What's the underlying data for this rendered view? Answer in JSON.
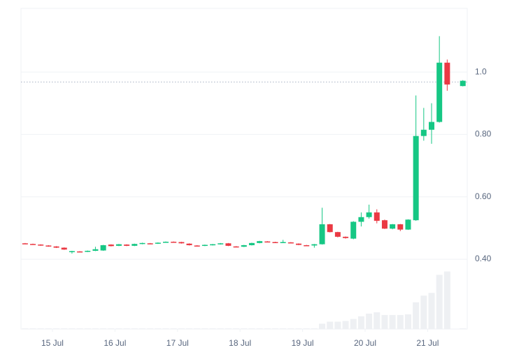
{
  "chart_data": {
    "type": "candlestick",
    "x": [
      -0.4375,
      -0.3125,
      -0.1875,
      -0.0625,
      0.0625,
      0.1875,
      0.3125,
      0.4375,
      0.5625,
      0.6875,
      0.8125,
      0.9375,
      1.0625,
      1.1875,
      1.3125,
      1.4375,
      1.5625,
      1.6875,
      1.8125,
      1.9375,
      2.0625,
      2.1875,
      2.3125,
      2.4375,
      2.5625,
      2.6875,
      2.8125,
      2.9375,
      3.0625,
      3.1875,
      3.3125,
      3.4375,
      3.5625,
      3.6875,
      3.8125,
      3.9375,
      4.0625,
      4.1875,
      4.3125,
      4.4375,
      4.5625,
      4.6875,
      4.8125,
      4.9375,
      5.0625,
      5.1875,
      5.3125,
      5.4375,
      5.5625,
      5.6875,
      5.8125,
      5.9375,
      6.0625,
      6.1875,
      6.3125,
      6.5625
    ],
    "open": [
      0.451,
      0.449,
      0.447,
      0.444,
      0.441,
      0.437,
      0.424,
      0.425,
      0.424,
      0.427,
      0.428,
      0.447,
      0.443,
      0.447,
      0.443,
      0.449,
      0.451,
      0.45,
      0.454,
      0.456,
      0.455,
      0.45,
      0.444,
      0.443,
      0.445,
      0.448,
      0.451,
      0.441,
      0.44,
      0.445,
      0.452,
      0.457,
      0.455,
      0.453,
      0.454,
      0.45,
      0.445,
      0.444,
      0.448,
      0.512,
      0.487,
      0.472,
      0.466,
      0.52,
      0.535,
      0.55,
      0.525,
      0.498,
      0.512,
      0.495,
      0.525,
      0.795,
      0.815,
      0.84,
      1.03,
      0.955
    ],
    "high": [
      0.452,
      0.45,
      0.448,
      0.445,
      0.442,
      0.438,
      0.427,
      0.426,
      0.428,
      0.44,
      0.446,
      0.448,
      0.449,
      0.448,
      0.45,
      0.453,
      0.452,
      0.454,
      0.457,
      0.457,
      0.456,
      0.451,
      0.445,
      0.447,
      0.449,
      0.452,
      0.452,
      0.442,
      0.446,
      0.453,
      0.459,
      0.458,
      0.456,
      0.462,
      0.455,
      0.451,
      0.446,
      0.449,
      0.565,
      0.513,
      0.488,
      0.473,
      0.522,
      0.55,
      0.575,
      0.56,
      0.527,
      0.513,
      0.513,
      0.528,
      0.925,
      0.885,
      0.9,
      1.115,
      1.04,
      0.974
    ],
    "low": [
      0.449,
      0.446,
      0.443,
      0.44,
      0.436,
      0.43,
      0.418,
      0.422,
      0.423,
      0.426,
      0.427,
      0.441,
      0.442,
      0.442,
      0.442,
      0.448,
      0.449,
      0.449,
      0.453,
      0.454,
      0.45,
      0.444,
      0.441,
      0.442,
      0.444,
      0.447,
      0.442,
      0.438,
      0.439,
      0.444,
      0.451,
      0.455,
      0.452,
      0.452,
      0.451,
      0.445,
      0.443,
      0.437,
      0.447,
      0.486,
      0.47,
      0.466,
      0.464,
      0.505,
      0.53,
      0.515,
      0.497,
      0.496,
      0.49,
      0.494,
      0.523,
      0.78,
      0.77,
      0.838,
      0.94,
      0.954
    ],
    "close": [
      0.45,
      0.447,
      0.444,
      0.441,
      0.437,
      0.431,
      0.426,
      0.423,
      0.427,
      0.432,
      0.445,
      0.442,
      0.448,
      0.443,
      0.449,
      0.452,
      0.45,
      0.453,
      0.456,
      0.455,
      0.451,
      0.445,
      0.442,
      0.446,
      0.448,
      0.451,
      0.443,
      0.44,
      0.445,
      0.452,
      0.458,
      0.456,
      0.453,
      0.455,
      0.452,
      0.446,
      0.444,
      0.448,
      0.512,
      0.487,
      0.472,
      0.468,
      0.52,
      0.535,
      0.55,
      0.523,
      0.498,
      0.512,
      0.495,
      0.527,
      0.795,
      0.815,
      0.84,
      1.03,
      0.96,
      0.972
    ],
    "volume": [
      1,
      1,
      1,
      1,
      1,
      1,
      1,
      1,
      1,
      1,
      1,
      1,
      1,
      1,
      1,
      1,
      1,
      1,
      1,
      1,
      1,
      1,
      1,
      1,
      1,
      1,
      1,
      1,
      1,
      1,
      1,
      1,
      1,
      1,
      1,
      1,
      1,
      1,
      8,
      11,
      11,
      12,
      15,
      19,
      23,
      25,
      21,
      21,
      21,
      22,
      40,
      50,
      54,
      81,
      86,
      1
    ],
    "up_color": "#16c784",
    "down_color": "#ea3943",
    "volume_color": "#eef0f3",
    "volume_ylim": [
      0,
      95
    ],
    "last_price": 0.968,
    "xlim": [
      -0.503,
      6.633
    ],
    "xticks": [
      {
        "value": 0,
        "label": "15 Jul"
      },
      {
        "value": 1,
        "label": "16 Jul"
      },
      {
        "value": 2,
        "label": "17 Jul"
      },
      {
        "value": 3,
        "label": "18 Jul"
      },
      {
        "value": 4,
        "label": "19 Jul"
      },
      {
        "value": 5,
        "label": "20 Jul"
      },
      {
        "value": 6,
        "label": "21 Jul"
      }
    ],
    "ylim": [
      0.38,
      1.204
    ],
    "yticks": [
      {
        "value": 0.4,
        "label": "0.40"
      },
      {
        "value": 0.6,
        "label": "0.60"
      },
      {
        "value": 0.8,
        "label": "0.80"
      },
      {
        "value": 1,
        "label": "1.0"
      }
    ],
    "grid": true
  }
}
